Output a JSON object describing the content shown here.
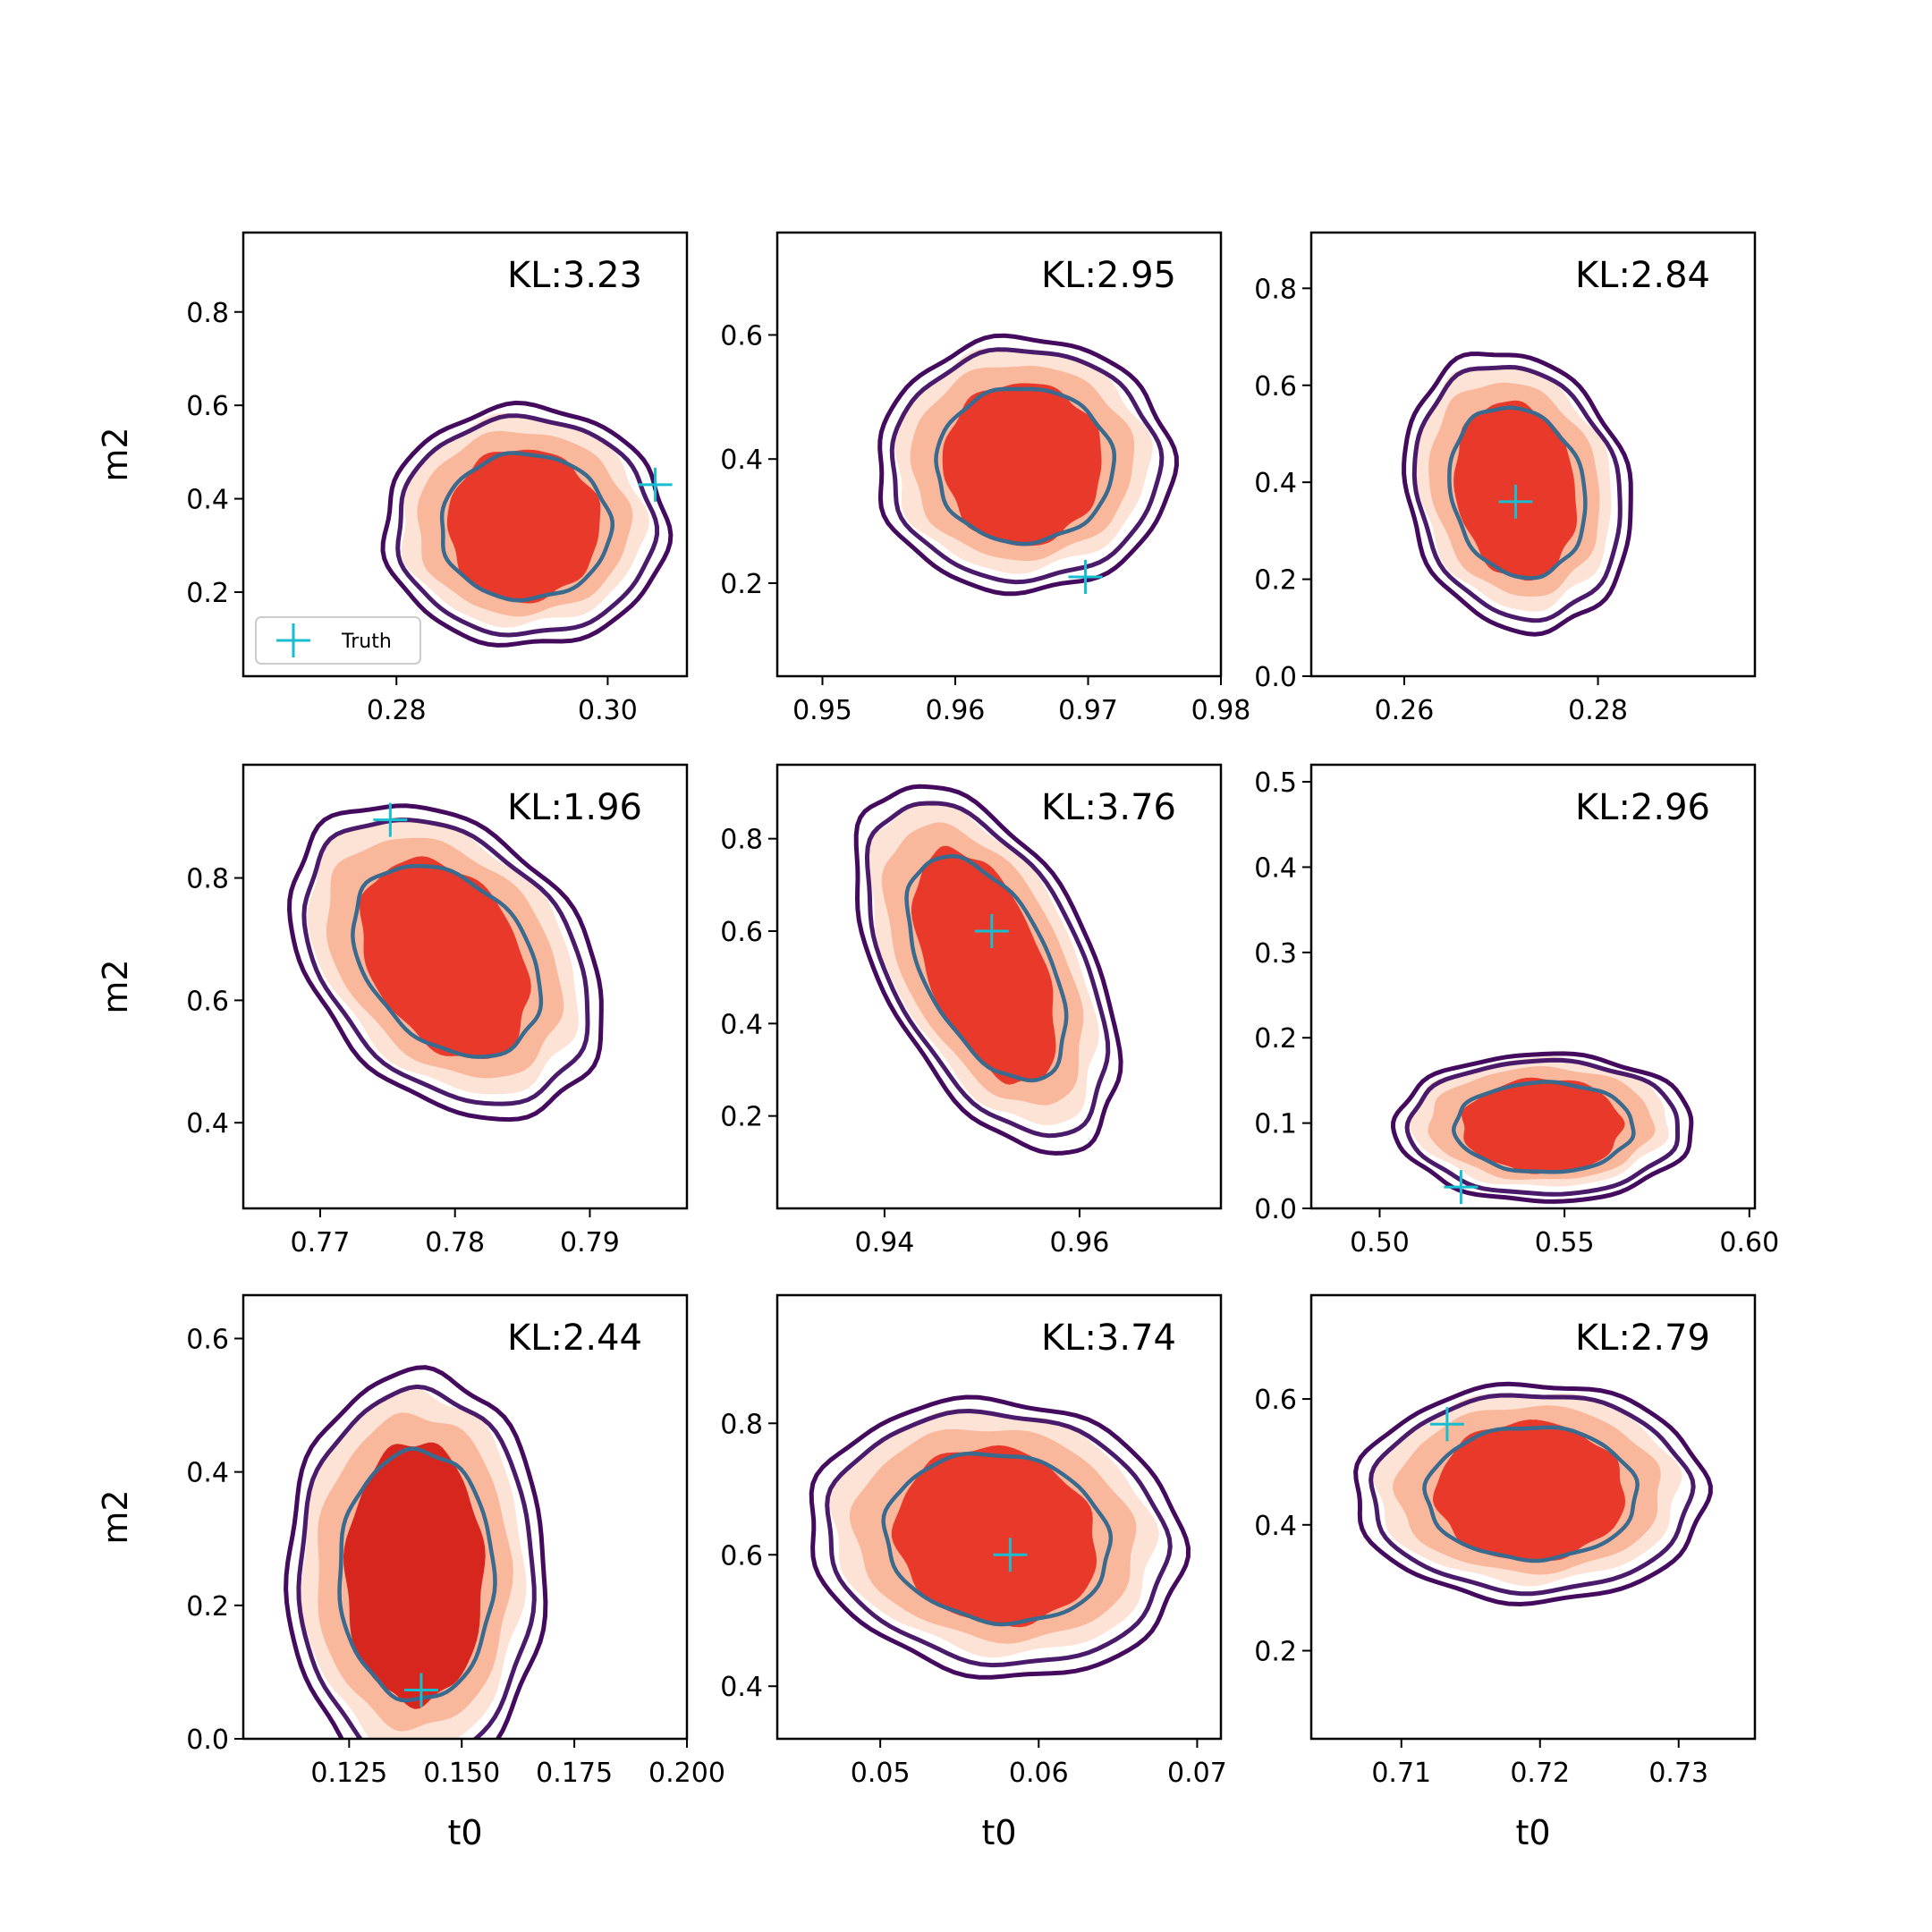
{
  "figure": {
    "legend_label": "Truth",
    "colors": {
      "inner_filled": "#e8392b",
      "inner_filled_dark": "#d7261e",
      "middle_filled": "#f9b89c",
      "outer_filled": "#fde2d6",
      "outer_line": "#440a5e",
      "middle_line": "#4a1b6b",
      "inner_line": "#3b6a8f",
      "truth_marker": "#17becf"
    }
  },
  "chart_data": [
    {
      "type": "contour",
      "row": 0,
      "col": 0,
      "annotation": "KL:3.23",
      "xlabel": "",
      "ylabel": "m2",
      "xlim": [
        0.2655,
        0.3075
      ],
      "ylim": [
        0.02,
        0.97
      ],
      "xticks": [
        0.28,
        0.3
      ],
      "xtick_labels": [
        "0.28",
        "0.30"
      ],
      "yticks": [
        0.2,
        0.4,
        0.6,
        0.8
      ],
      "ytick_labels": [
        "0.2",
        "0.4",
        "0.6",
        "0.8"
      ],
      "center": [
        0.2922,
        0.34
      ],
      "width": 0.0206,
      "height": 0.4,
      "tilt": 0,
      "truth": [
        0.3045,
        0.43
      ],
      "legend": true
    },
    {
      "type": "contour",
      "row": 0,
      "col": 1,
      "annotation": "KL:2.95",
      "xlabel": "",
      "ylabel": "",
      "xlim": [
        0.9466,
        0.98
      ],
      "ylim": [
        0.05,
        0.765
      ],
      "xticks": [
        0.95,
        0.96,
        0.97,
        0.98
      ],
      "xtick_labels": [
        "0.95",
        "0.96",
        "0.97",
        "0.98"
      ],
      "yticks": [
        0.2,
        0.4,
        0.6
      ],
      "ytick_labels": [
        "0.2",
        "0.4",
        "0.6"
      ],
      "center": [
        0.9652,
        0.39
      ],
      "width": 0.0171,
      "height": 0.32,
      "tilt": 0,
      "truth": [
        0.9698,
        0.21
      ],
      "legend": false
    },
    {
      "type": "contour",
      "row": 0,
      "col": 2,
      "annotation": "KL:2.84",
      "xlabel": "",
      "ylabel": "",
      "xlim": [
        0.2504,
        0.2962
      ],
      "ylim": [
        0.0,
        0.915
      ],
      "xticks": [
        0.26,
        0.28
      ],
      "xtick_labels": [
        "0.26",
        "0.28"
      ],
      "yticks": [
        0.0,
        0.2,
        0.4,
        0.6,
        0.8
      ],
      "ytick_labels": [
        "0.0",
        "0.2",
        "0.4",
        "0.6",
        "0.8"
      ],
      "center": [
        0.2717,
        0.38
      ],
      "width": 0.0178,
      "height": 0.45,
      "tilt": 0.15,
      "truth": [
        0.2715,
        0.36
      ],
      "legend": false
    },
    {
      "type": "contour",
      "row": 1,
      "col": 0,
      "annotation": "KL:1.96",
      "xlabel": "",
      "ylabel": "m2",
      "xlim": [
        0.7643,
        0.7972
      ],
      "ylim": [
        0.26,
        0.985
      ],
      "xticks": [
        0.77,
        0.78,
        0.79
      ],
      "xtick_labels": [
        "0.77",
        "0.78",
        "0.79"
      ],
      "yticks": [
        0.4,
        0.6,
        0.8
      ],
      "ytick_labels": [
        "0.4",
        "0.6",
        "0.8"
      ],
      "center": [
        0.7794,
        0.665
      ],
      "width": 0.0168,
      "height": 0.4,
      "tilt": 0.35,
      "truth": [
        0.7752,
        0.895
      ],
      "legend": false
    },
    {
      "type": "contour",
      "row": 1,
      "col": 1,
      "annotation": "KL:3.76",
      "xlabel": "",
      "ylabel": "",
      "xlim": [
        0.929,
        0.9745
      ],
      "ylim": [
        0.0,
        0.96
      ],
      "xticks": [
        0.94,
        0.96
      ],
      "xtick_labels": [
        "0.94",
        "0.96"
      ],
      "yticks": [
        0.2,
        0.4,
        0.6,
        0.8
      ],
      "ytick_labels": [
        "0.2",
        "0.4",
        "0.6",
        "0.8"
      ],
      "center": [
        0.9505,
        0.52
      ],
      "width": 0.0178,
      "height": 0.62,
      "tilt": 0.6,
      "truth": [
        0.951,
        0.6
      ],
      "legend": false
    },
    {
      "type": "contour",
      "row": 1,
      "col": 2,
      "annotation": "KL:2.96",
      "xlabel": "",
      "ylabel": "",
      "xlim": [
        0.4815,
        0.6015
      ],
      "ylim": [
        0.0,
        0.52
      ],
      "xticks": [
        0.5,
        0.55,
        0.6
      ],
      "xtick_labels": [
        "0.50",
        "0.55",
        "0.60"
      ],
      "yticks": [
        0.0,
        0.1,
        0.2,
        0.3,
        0.4,
        0.5
      ],
      "ytick_labels": [
        "0.0",
        "0.1",
        "0.2",
        "0.3",
        "0.4",
        "0.5"
      ],
      "center": [
        0.5445,
        0.095
      ],
      "width": 0.062,
      "height": 0.135,
      "tilt": 0,
      "truth": [
        0.522,
        0.025
      ],
      "legend": false
    },
    {
      "type": "contour",
      "row": 2,
      "col": 0,
      "annotation": "KL:2.44",
      "xlabel": "t0",
      "ylabel": "m2",
      "xlim": [
        0.1015,
        0.2
      ],
      "ylim": [
        0.0,
        0.665
      ],
      "xticks": [
        0.125,
        0.15,
        0.175,
        0.2
      ],
      "xtick_labels": [
        "0.125",
        "0.150",
        "0.175",
        "0.200"
      ],
      "yticks": [
        0.0,
        0.2,
        0.4,
        0.6
      ],
      "ytick_labels": [
        "0.0",
        "0.2",
        "0.4",
        "0.6"
      ],
      "center": [
        0.14,
        0.245
      ],
      "width": 0.044,
      "height": 0.48,
      "tilt": 0,
      "truth": [
        0.141,
        0.073
      ],
      "legend": false
    },
    {
      "type": "contour",
      "row": 2,
      "col": 1,
      "annotation": "KL:3.74",
      "xlabel": "t0",
      "ylabel": "",
      "xlim": [
        0.0435,
        0.0715
      ],
      "ylim": [
        0.32,
        0.995
      ],
      "xticks": [
        0.05,
        0.06,
        0.07
      ],
      "xtick_labels": [
        "0.05",
        "0.06",
        "0.07"
      ],
      "yticks": [
        0.4,
        0.6,
        0.8
      ],
      "ytick_labels": [
        "0.4",
        "0.6",
        "0.8"
      ],
      "center": [
        0.0574,
        0.625
      ],
      "width": 0.0181,
      "height": 0.33,
      "tilt": 0.1,
      "truth": [
        0.0582,
        0.6
      ],
      "legend": false
    },
    {
      "type": "contour",
      "row": 2,
      "col": 2,
      "annotation": "KL:2.79",
      "xlabel": "t0",
      "ylabel": "",
      "xlim": [
        0.7035,
        0.7355
      ],
      "ylim": [
        0.06,
        0.765
      ],
      "xticks": [
        0.71,
        0.72,
        0.73
      ],
      "xtick_labels": [
        "0.71",
        "0.72",
        "0.73"
      ],
      "yticks": [
        0.2,
        0.4,
        0.6
      ],
      "ytick_labels": [
        "0.2",
        "0.4",
        "0.6"
      ],
      "center": [
        0.7194,
        0.45
      ],
      "width": 0.0195,
      "height": 0.27,
      "tilt": 0,
      "truth": [
        0.7133,
        0.56
      ],
      "legend": false
    }
  ]
}
